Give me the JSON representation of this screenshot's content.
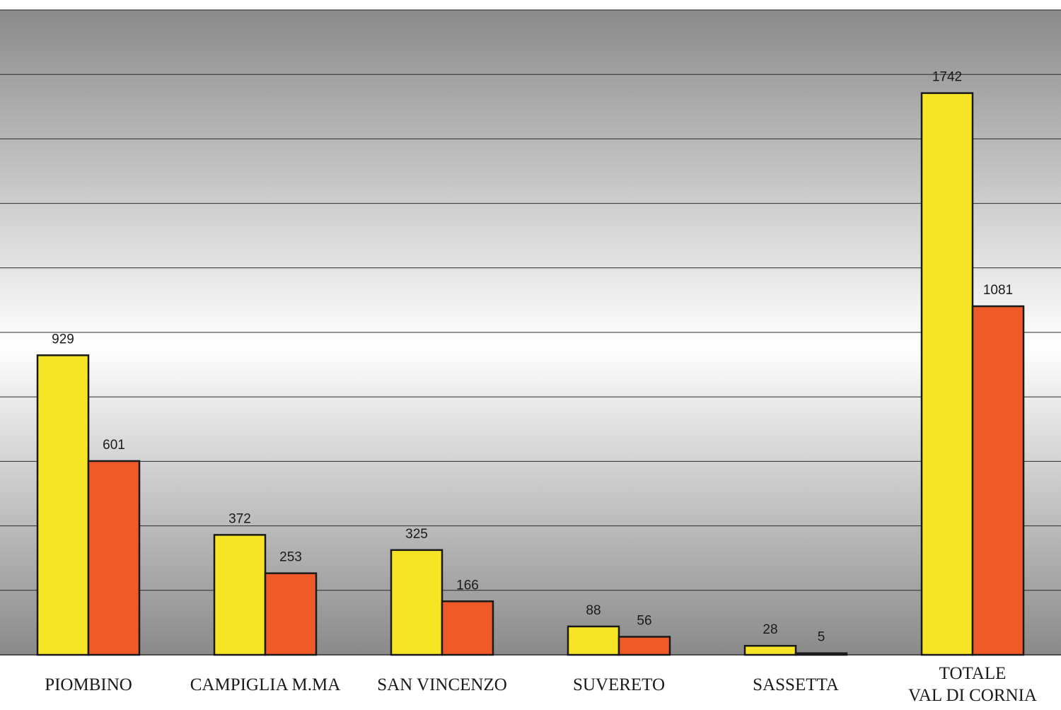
{
  "chart_data": {
    "type": "bar",
    "categories": [
      [
        "PIOMBINO"
      ],
      [
        "CAMPIGLIA M.MA"
      ],
      [
        "SAN VINCENZO"
      ],
      [
        "SUVERETO"
      ],
      [
        "SASSETTA"
      ],
      [
        "TOTALE",
        "VAL DI CORNIA"
      ]
    ],
    "series": [
      {
        "values": [
          929,
          372,
          325,
          88,
          28,
          1742
        ],
        "color": "#f7e425"
      },
      {
        "values": [
          601,
          253,
          166,
          56,
          5,
          1081
        ],
        "color": "#f05a28"
      }
    ],
    "ylim": [
      0,
      2000
    ],
    "y_gridlines": [
      200,
      400,
      600,
      800,
      1000,
      1200,
      1400,
      1600,
      1800,
      2000
    ],
    "grid": true,
    "legend": "none",
    "title": "",
    "xlabel": "",
    "ylabel": "",
    "background": {
      "gradient_top": "#8a8a8a",
      "gradient_mid": "#ffffff",
      "gradient_bottom": "#8a8a8a"
    }
  }
}
